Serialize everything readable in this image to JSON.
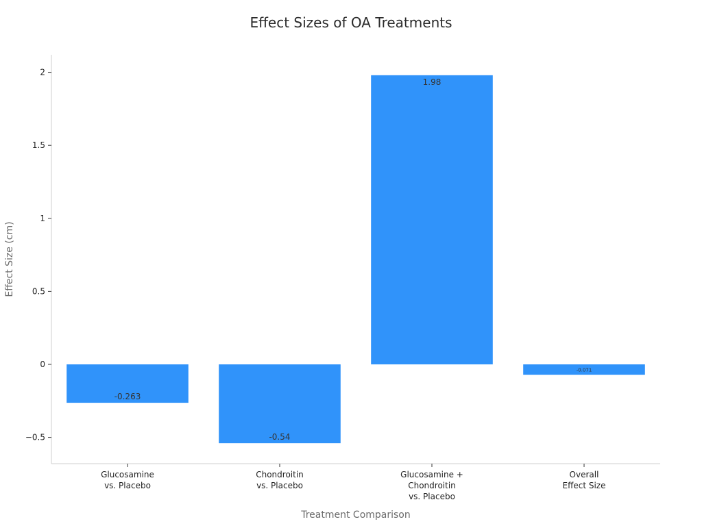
{
  "chart_data": {
    "type": "bar",
    "title": "Effect Sizes of OA Treatments",
    "xlabel": "Treatment Comparison",
    "ylabel": "Effect Size (cm)",
    "categories": [
      [
        "Glucosamine",
        "vs. Placebo"
      ],
      [
        "Chondroitin",
        "vs. Placebo"
      ],
      [
        "Glucosamine +",
        "Chondroitin",
        "vs. Placebo"
      ],
      [
        "Overall",
        "Effect Size"
      ]
    ],
    "values": [
      -0.263,
      -0.54,
      1.98,
      -0.071
    ],
    "data_labels": [
      "-0.263",
      "-0.54",
      "1.98",
      "-0.071"
    ],
    "ylim": [
      -0.68,
      2.12
    ],
    "yticks": [
      -0.5,
      0,
      0.5,
      1,
      1.5,
      2
    ],
    "ytick_labels": [
      "−0.5",
      "0",
      "0.5",
      "1",
      "1.5",
      "2"
    ],
    "grid": false,
    "bar_color": "#3093fa"
  }
}
